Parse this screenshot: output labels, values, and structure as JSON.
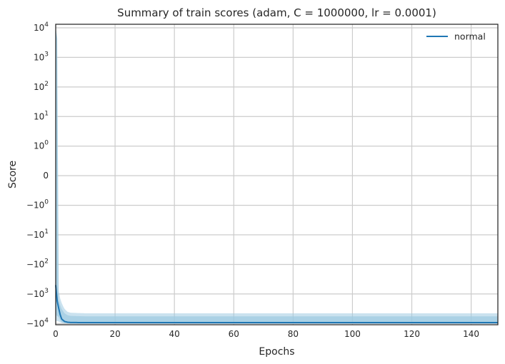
{
  "chart_data": {
    "type": "line",
    "title": "Summary of train scores (adam, C = 1000000, lr = 0.0001)",
    "xlabel": "Epochs",
    "ylabel": "Score",
    "xlim": [
      0,
      149
    ],
    "x_ticks": [
      0,
      20,
      40,
      60,
      80,
      100,
      120,
      140
    ],
    "y_scale": "symlog",
    "y_ticks": [
      {
        "value": 10000,
        "base": "10",
        "exp": "4"
      },
      {
        "value": 1000,
        "base": "10",
        "exp": "3"
      },
      {
        "value": 100,
        "base": "10",
        "exp": "2"
      },
      {
        "value": 10,
        "base": "10",
        "exp": "1"
      },
      {
        "value": 1,
        "base": "10",
        "exp": "0"
      },
      {
        "value": 0,
        "base": "0",
        "exp": ""
      },
      {
        "value": -1,
        "base": "−10",
        "exp": "0"
      },
      {
        "value": -10,
        "base": "−10",
        "exp": "1"
      },
      {
        "value": -100,
        "base": "−10",
        "exp": "2"
      },
      {
        "value": -1000,
        "base": "−10",
        "exp": "3"
      },
      {
        "value": -10000,
        "base": "−10",
        "exp": "4"
      }
    ],
    "grid": true,
    "legend_position": "top-right",
    "series": [
      {
        "name": "normal",
        "color": "#1f77b4",
        "band_color": "#9ecae1",
        "x": [
          0,
          1,
          2,
          3,
          4,
          5,
          10,
          149
        ],
        "mean": [
          -500,
          -3000,
          -7000,
          -8500,
          -9000,
          -9200,
          -9300,
          -9300
        ],
        "std_upper": [
          10000,
          -1500,
          -3200,
          -4500,
          -5200,
          -5500,
          -5700,
          -5700
        ],
        "std_lower": [
          -5000,
          -6000,
          -9000,
          -9600,
          -9800,
          -9900,
          -9950,
          -9950
        ],
        "minmax_upper": [
          10000,
          -800,
          -2000,
          -3200,
          -4000,
          -4300,
          -4500,
          -4500
        ],
        "minmax_lower": [
          -8000,
          -8500,
          -9500,
          -9800,
          -9900,
          -9950,
          -9980,
          -9980
        ]
      }
    ]
  }
}
